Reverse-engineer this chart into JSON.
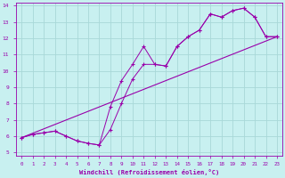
{
  "xlabel": "Windchill (Refroidissement éolien,°C)",
  "xlim": [
    -0.5,
    23.5
  ],
  "ylim": [
    4.8,
    14.2
  ],
  "xticks": [
    0,
    1,
    2,
    3,
    4,
    5,
    6,
    7,
    8,
    9,
    10,
    11,
    12,
    13,
    14,
    15,
    16,
    17,
    18,
    19,
    20,
    21,
    22,
    23
  ],
  "yticks": [
    5,
    6,
    7,
    8,
    9,
    10,
    11,
    12,
    13,
    14
  ],
  "bg_color": "#c8f0f0",
  "grid_color": "#a8d8d8",
  "line_color": "#9900aa",
  "line1_x": [
    0,
    1,
    2,
    3,
    4,
    5,
    6,
    7,
    8,
    9,
    10,
    11,
    12,
    13,
    14,
    15,
    16,
    17,
    18,
    19,
    20,
    21,
    22,
    23
  ],
  "line1_y": [
    5.9,
    6.1,
    6.2,
    6.3,
    6.0,
    5.7,
    5.55,
    5.45,
    6.4,
    8.0,
    9.5,
    10.4,
    10.4,
    10.3,
    11.5,
    12.1,
    12.5,
    13.5,
    13.3,
    13.7,
    13.85,
    13.3,
    12.1,
    12.1
  ],
  "line2_x": [
    0,
    1,
    2,
    3,
    4,
    5,
    6,
    7,
    8,
    9,
    10,
    11,
    12,
    13,
    14,
    15,
    16,
    17,
    18,
    19,
    20,
    21,
    22,
    23
  ],
  "line2_y": [
    5.9,
    6.1,
    6.2,
    6.3,
    6.0,
    5.7,
    5.55,
    5.45,
    7.8,
    9.4,
    10.4,
    11.5,
    10.4,
    10.3,
    11.5,
    12.1,
    12.5,
    13.5,
    13.3,
    13.7,
    13.85,
    13.3,
    12.1,
    12.1
  ],
  "ref_line_x": [
    0,
    23
  ],
  "ref_line_y": [
    5.9,
    12.1
  ]
}
